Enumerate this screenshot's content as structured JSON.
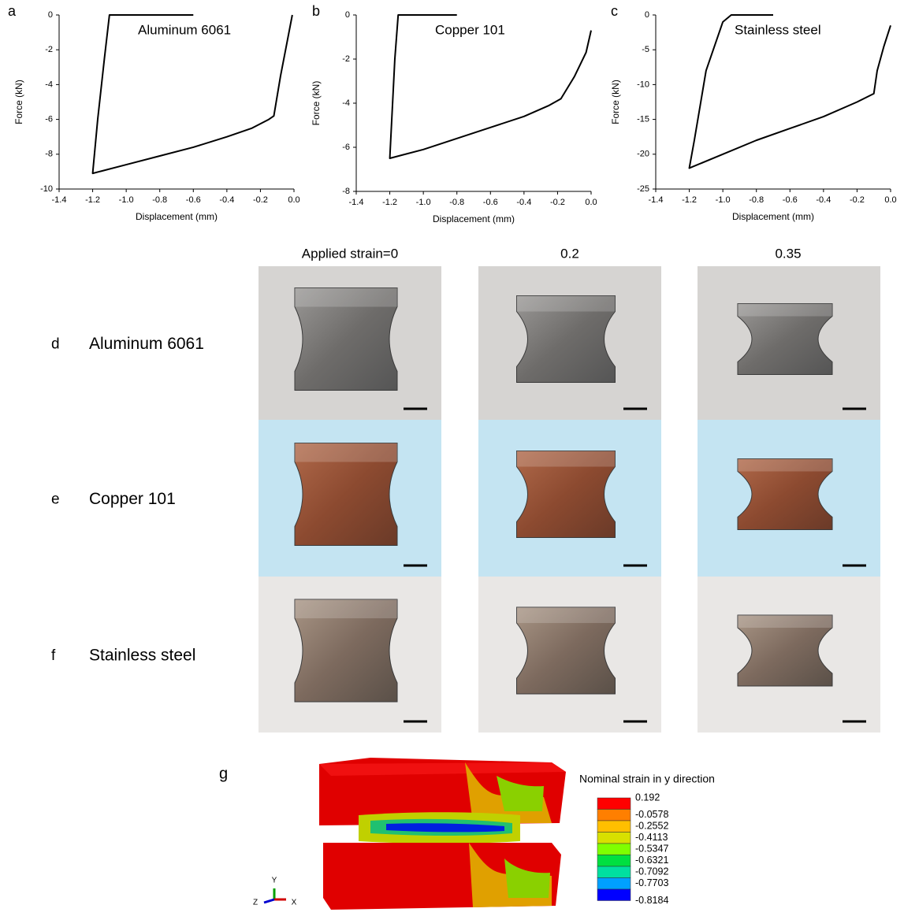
{
  "chart_data": [
    {
      "type": "line",
      "panel": "a",
      "title": "Aluminum 6061",
      "xlabel": "Displacement (mm)",
      "ylabel": "Force (kN)",
      "x": [
        -0.6,
        -1.1,
        -1.13,
        -1.17,
        -1.2,
        -1.0,
        -0.8,
        -0.6,
        -0.4,
        -0.25,
        -0.15,
        -0.12,
        -0.08,
        -0.04,
        -0.01
      ],
      "series": [
        {
          "color": "#000000",
          "values": [
            0,
            0,
            -2.5,
            -6,
            -9.1,
            -8.6,
            -8.1,
            -7.6,
            -7.0,
            -6.5,
            -6.0,
            -5.8,
            -3.5,
            -1.5,
            0
          ]
        }
      ],
      "xlim": [
        -1.4,
        0
      ],
      "xticks": [
        -1.4,
        -1.2,
        {
          "value": -1,
          "label": "-1.0"
        },
        -0.8,
        -0.6,
        -0.4,
        -0.2,
        {
          "value": 0,
          "label": "0.0"
        }
      ],
      "ylim": [
        -10,
        0
      ],
      "yticks": [
        -10,
        -8,
        -6,
        -4,
        -2,
        0
      ]
    },
    {
      "type": "line",
      "panel": "b",
      "title": "Copper 101",
      "xlabel": "Displacement (mm)",
      "ylabel": "Force (kN)",
      "x": [
        -0.8,
        -1.15,
        -1.17,
        -1.2,
        -1.0,
        -0.8,
        -0.6,
        -0.4,
        -0.25,
        -0.18,
        -0.1,
        -0.03,
        0
      ],
      "series": [
        {
          "color": "#000000",
          "values": [
            0,
            0,
            -2,
            -6.5,
            -6.1,
            -5.6,
            -5.1,
            -4.6,
            -4.1,
            -3.8,
            -2.8,
            -1.7,
            -0.7
          ]
        }
      ],
      "xlim": [
        -1.4,
        0
      ],
      "xticks": [
        -1.4,
        -1.2,
        {
          "value": -1,
          "label": "-1.0"
        },
        -0.8,
        -0.6,
        -0.4,
        -0.2,
        {
          "value": 0,
          "label": "0.0"
        }
      ],
      "ylim": [
        -8,
        0
      ],
      "yticks": [
        -8,
        -6,
        -4,
        -2,
        0
      ]
    },
    {
      "type": "line",
      "panel": "c",
      "title": "Stainless steel",
      "xlabel": "Displacement (mm)",
      "ylabel": "Force (kN)",
      "x": [
        -0.7,
        -0.95,
        -1.0,
        -1.1,
        -1.17,
        -1.2,
        -1.0,
        -0.8,
        -0.6,
        -0.4,
        -0.2,
        -0.1,
        -0.08,
        -0.04,
        0
      ],
      "series": [
        {
          "color": "#000000",
          "values": [
            0,
            0,
            -1,
            -8,
            -18,
            -22,
            -20,
            -18,
            -16.3,
            -14.6,
            -12.5,
            -11.3,
            -8,
            -4.5,
            -1.5
          ]
        }
      ],
      "xlim": [
        -1.4,
        0
      ],
      "xticks": [
        -1.4,
        -1.2,
        {
          "value": -1,
          "label": "-1.0"
        },
        -0.8,
        -0.6,
        -0.4,
        -0.2,
        {
          "value": 0,
          "label": "0.0"
        }
      ],
      "ylim": [
        -25,
        0
      ],
      "yticks": [
        -25,
        -20,
        -15,
        -10,
        -5,
        0
      ]
    }
  ],
  "photos": {
    "column_headers": [
      "Applied strain=0",
      "0.2",
      "0.35"
    ],
    "rows": [
      {
        "panel": "d",
        "label": "Aluminum 6061"
      },
      {
        "panel": "e",
        "label": "Copper 101"
      },
      {
        "panel": "f",
        "label": "Stainless steel"
      }
    ]
  },
  "fea": {
    "panel": "g",
    "legend_title": "Nominal strain in y direction",
    "levels": [
      0.192,
      -0.0578,
      -0.2552,
      -0.4113,
      -0.5347,
      -0.6321,
      -0.7092,
      -0.7703,
      -0.8184
    ],
    "colors": [
      "#ff0000",
      "#ff7f00",
      "#ffbf00",
      "#d8e000",
      "#7fff00",
      "#00e040",
      "#00e0a0",
      "#00a0ff",
      "#0000ff"
    ],
    "axes": [
      "Y",
      "Z",
      "X"
    ]
  }
}
